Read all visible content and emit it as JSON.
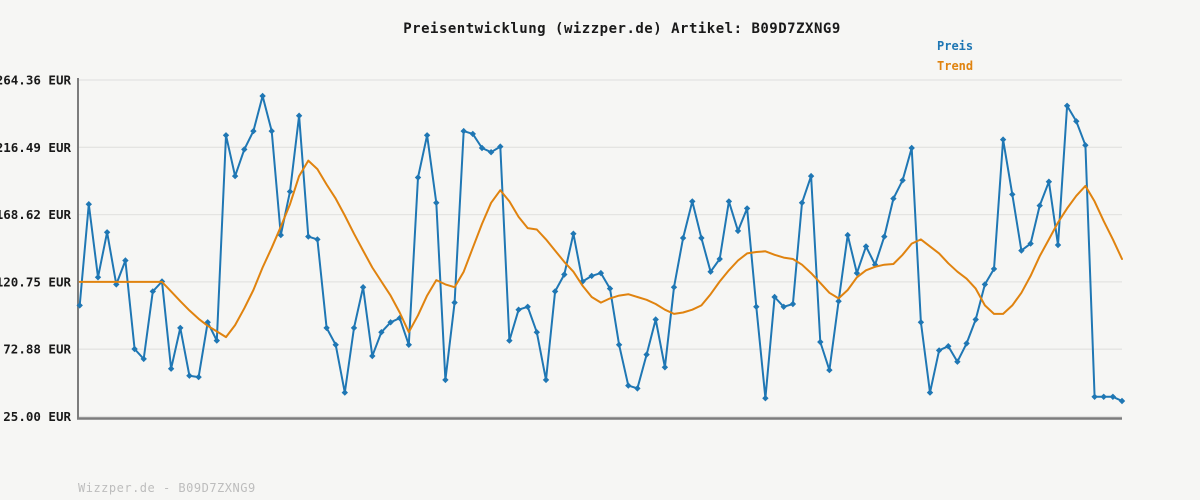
{
  "title": "Preisentwicklung (wizzper.de) Artikel: B09D7ZXNG9",
  "footer": "Wizzper.de - B09D7ZXNG9",
  "legend": {
    "preis_label": "Preis",
    "trend_label": "Trend"
  },
  "colors": {
    "preis": "#1f77b4",
    "trend": "#e0830f",
    "grid": "#e4e4e2",
    "spine": "#7c7c7c",
    "tick_text": "#1a1a1a",
    "footer_text": "#bdbdbd",
    "background": "#f6f6f4"
  },
  "chart_data": {
    "type": "line",
    "title": "Preisentwicklung (wizzper.de) Artikel: B09D7ZXNG9",
    "xlabel": "",
    "ylabel": "",
    "x_unit": "observation index (no x tick labels shown)",
    "ylim": [
      25.0,
      264.36
    ],
    "grid": true,
    "legend_position": "top-right",
    "yticks": [
      {
        "label": "264.36 EUR",
        "value": 264.36
      },
      {
        "label": "216.49 EUR",
        "value": 216.49
      },
      {
        "label": "168.62 EUR",
        "value": 168.62
      },
      {
        "label": "120.75 EUR",
        "value": 120.75
      },
      {
        "label": "72.88 EUR",
        "value": 72.88
      },
      {
        "label": "25.00 EUR",
        "value": 25.0
      }
    ],
    "series": [
      {
        "name": "Preis",
        "color": "#1f77b4",
        "marker": "diamond",
        "values": [
          104,
          176,
          124,
          156,
          119,
          136,
          73,
          66,
          114,
          121,
          59,
          88,
          54,
          53,
          92,
          79,
          225,
          196,
          215,
          228,
          253,
          228,
          154,
          185,
          239,
          153,
          151,
          88,
          76,
          42,
          88,
          117,
          68,
          85,
          92,
          95,
          76,
          195,
          225,
          177,
          51,
          106,
          228,
          226,
          216,
          213,
          217,
          79,
          101,
          103,
          85,
          51,
          114,
          126,
          155,
          121,
          125,
          127,
          116,
          76,
          47,
          45,
          69,
          94,
          60,
          117,
          152,
          178,
          152,
          128,
          137,
          178,
          157,
          173,
          103,
          38,
          110,
          103,
          105,
          177,
          196,
          78,
          58,
          107,
          154,
          127,
          146,
          133,
          153,
          180,
          193,
          216,
          92,
          42,
          72,
          75,
          64,
          77,
          94,
          119,
          130,
          222,
          183,
          143,
          148,
          175,
          192,
          147,
          246,
          235,
          218,
          39,
          39,
          39,
          36
        ]
      },
      {
        "name": "Trend",
        "color": "#e0830f",
        "marker": "none",
        "values": [
          120.75,
          120.75,
          120.75,
          120.75,
          120.75,
          120.75,
          120.75,
          120.75,
          120.75,
          120.75,
          114,
          107,
          100.5,
          94.5,
          89.5,
          85.5,
          81.5,
          90,
          102,
          115,
          131,
          145,
          160,
          176,
          196,
          207,
          201,
          190,
          180,
          168,
          155,
          143,
          131,
          121,
          111,
          99,
          85,
          97,
          111,
          122,
          119,
          117,
          128,
          145,
          162,
          177,
          186,
          178,
          167,
          159,
          158,
          151,
          143,
          135,
          128,
          118,
          110,
          106,
          109,
          111,
          112,
          110,
          108,
          105,
          101,
          98,
          99,
          101,
          104,
          112,
          121,
          129,
          136,
          141,
          142,
          142.5,
          140,
          138,
          137,
          133,
          127,
          120,
          113,
          109,
          115,
          124,
          129,
          131.5,
          133,
          133.5,
          140,
          148,
          151,
          146,
          141,
          134,
          128,
          123,
          116,
          104,
          98,
          98,
          104,
          113,
          125,
          139,
          151,
          163,
          173,
          182,
          189,
          178,
          164,
          151,
          137
        ]
      }
    ]
  }
}
